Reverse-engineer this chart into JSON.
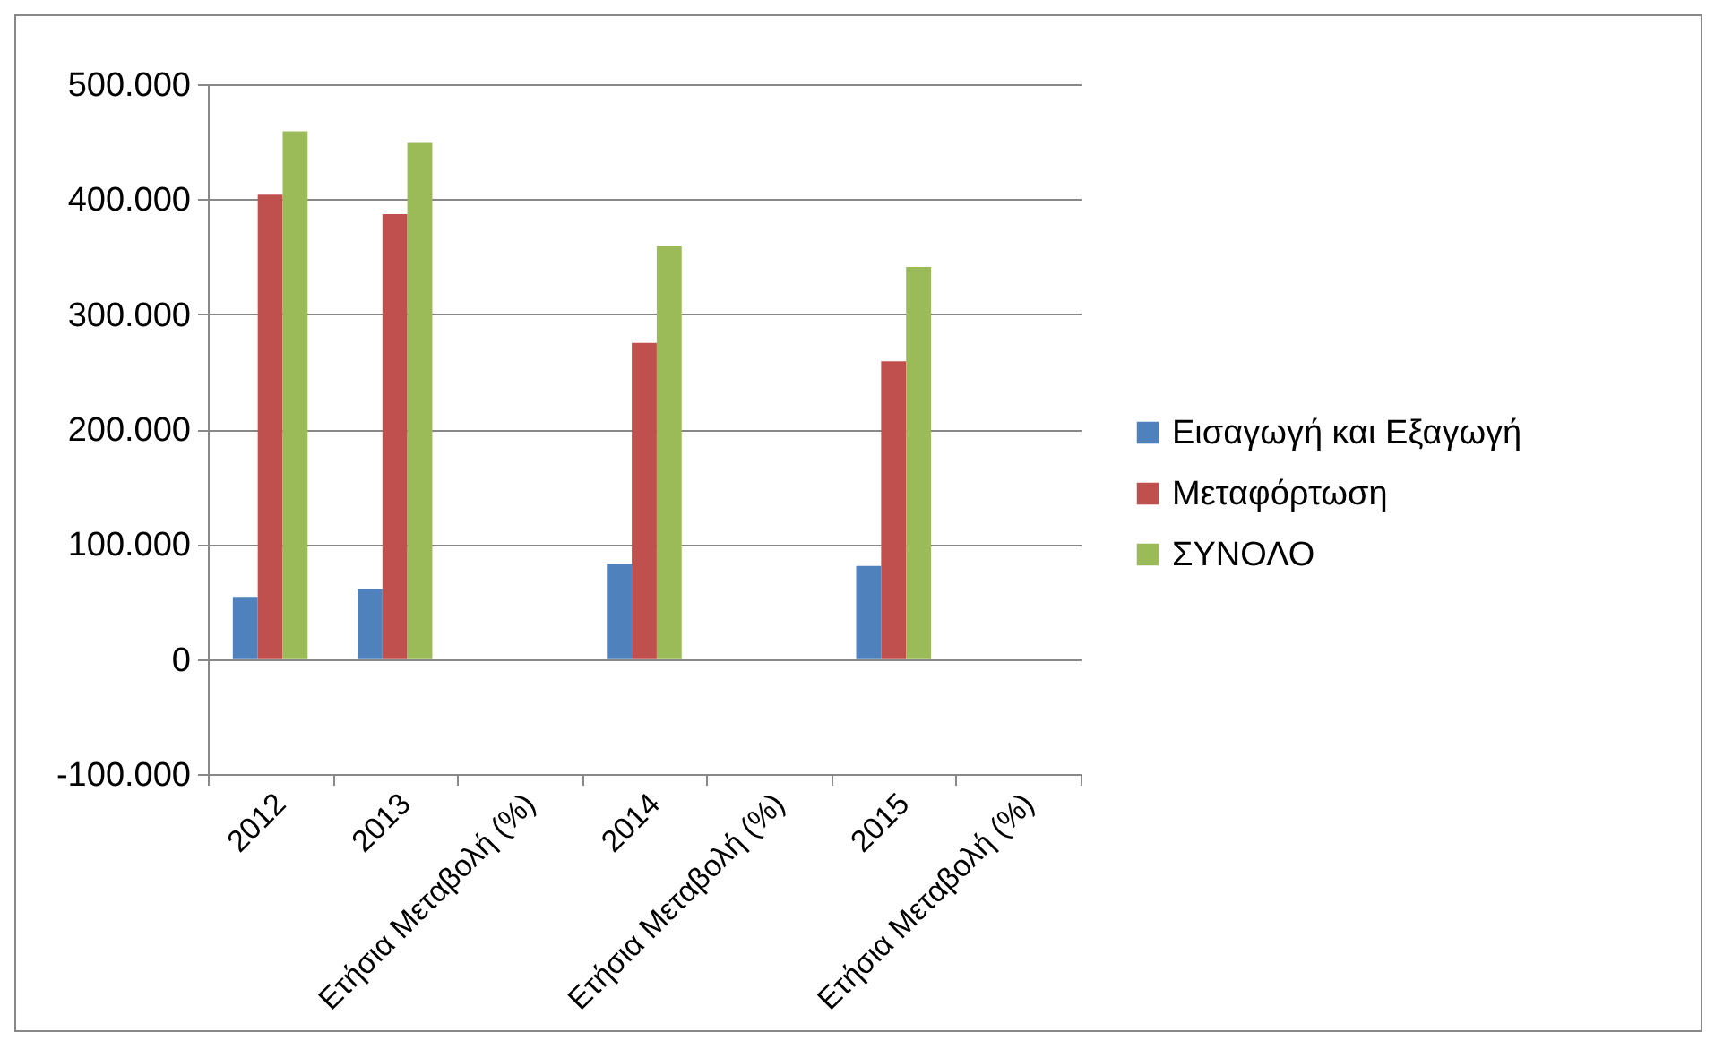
{
  "chart_data": {
    "type": "bar",
    "categories": [
      "2012",
      "2013",
      "Ετήσια Μεταβολή (%)",
      "2014",
      "Ετήσια Μεταβολή (%)",
      "2015",
      "Ετήσια Μεταβολή (%)"
    ],
    "series": [
      {
        "name": "Εισαγωγή και Εξαγωγή",
        "color": "#4f81bd",
        "values": [
          54000,
          61000,
          null,
          83000,
          null,
          81000,
          null
        ]
      },
      {
        "name": "Μεταφόρτωση",
        "color": "#c0504d",
        "values": [
          404000,
          387000,
          null,
          275000,
          null,
          259000,
          null
        ]
      },
      {
        "name": "ΣΥΝΟΛΟ",
        "color": "#9bbb59",
        "values": [
          459000,
          449000,
          null,
          359000,
          null,
          341000,
          null
        ]
      }
    ],
    "ylim": [
      -100000,
      500000
    ],
    "yticks": [
      {
        "value": -100000,
        "label": "-100.000"
      },
      0,
      {
        "value": 100000,
        "label": "100.000"
      },
      {
        "value": 200000,
        "label": "200.000"
      },
      {
        "value": 300000,
        "label": "300.000"
      },
      {
        "value": 400000,
        "label": "400.000"
      },
      {
        "value": 500000,
        "label": "500.000"
      }
    ],
    "grid": "y",
    "legend": "right"
  }
}
